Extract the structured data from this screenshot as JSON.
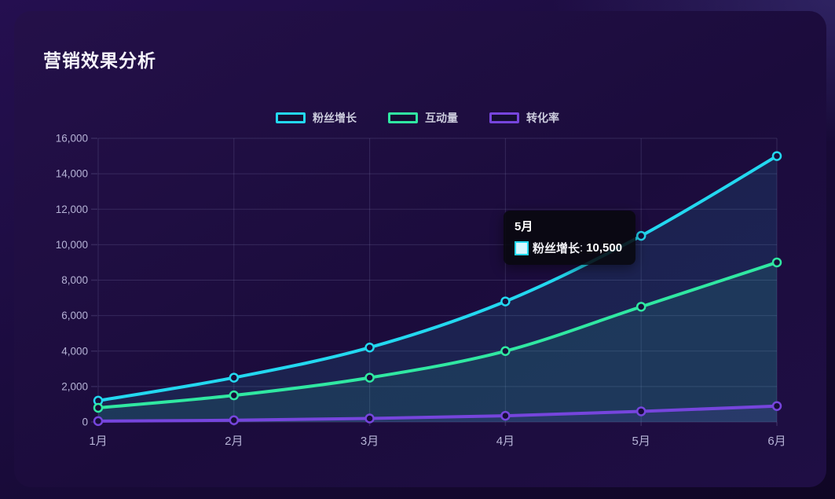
{
  "panel": {
    "title": "营销效果分析"
  },
  "colors": {
    "fans": "#23d8f0",
    "interactions": "#30e8a2",
    "conversion": "#7645dd",
    "axis_text": "#b6b3d6",
    "grid_line": "rgba(150,150,200,0.20)"
  },
  "chart_data": {
    "type": "line",
    "title": "营销效果分析",
    "categories": [
      "1月",
      "2月",
      "3月",
      "4月",
      "5月",
      "6月"
    ],
    "series": [
      {
        "name": "粉丝增长",
        "color": "#23d8f0",
        "values": [
          1200,
          2500,
          4200,
          6800,
          10500,
          15000
        ]
      },
      {
        "name": "互动量",
        "color": "#30e8a2",
        "values": [
          800,
          1500,
          2500,
          4000,
          6500,
          9000
        ]
      },
      {
        "name": "转化率",
        "color": "#7645dd",
        "values": [
          50,
          100,
          200,
          350,
          600,
          900
        ]
      }
    ],
    "xlabel": "",
    "ylabel": "",
    "ylim": [
      0,
      16000
    ],
    "ytick_interval": 2000,
    "ytick_labels": [
      "0",
      "2,000",
      "4,000",
      "6,000",
      "8,000",
      "10,000",
      "12,000",
      "14,000",
      "16,000"
    ],
    "grid": true,
    "legend_position": "top",
    "smooth": true
  },
  "tooltip": {
    "title": "5月",
    "series_label": "粉丝增长",
    "separator": ":",
    "value": "10,500",
    "marker_color": "#23d8f0"
  }
}
